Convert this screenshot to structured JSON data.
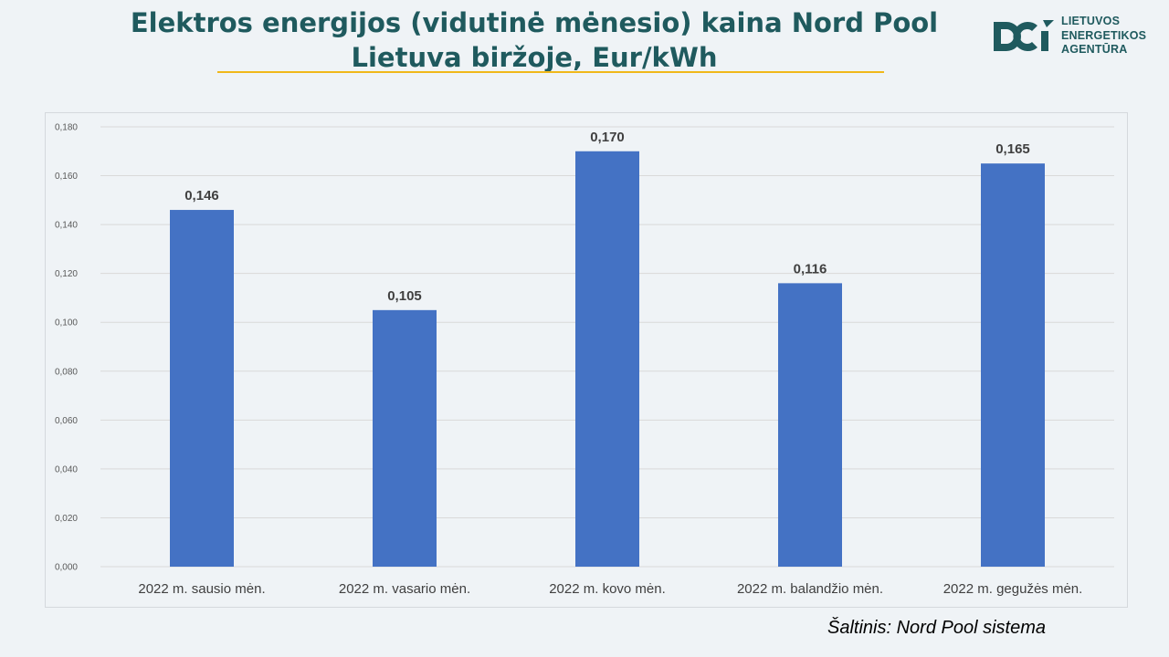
{
  "title": "Elektros energijos (vidutinė mėnesio) kaina Nord Pool Lietuva biržoje, Eur/kWh",
  "logo": {
    "lines": [
      "LIETUVOS",
      "ENERGETIKOS",
      "AGENTŪRA"
    ],
    "icon": "agency-logo-icon",
    "color": "#1f5a5e"
  },
  "source": "Šaltinis: Nord Pool sistema",
  "colors": {
    "bar": "#4472c4",
    "title": "#1f5a5e",
    "underline": "#f0b81a",
    "grid": "#d9d9d9",
    "label": "#404040"
  },
  "chart_data": {
    "type": "bar",
    "categories": [
      "2022 m. sausio mėn.",
      "2022 m. vasario mėn.",
      "2022 m. kovo mėn.",
      "2022 m. balandžio mėn.",
      "2022 m. gegužės mėn."
    ],
    "values": [
      0.146,
      0.105,
      0.17,
      0.116,
      0.165
    ],
    "data_labels": [
      "0,146",
      "0,105",
      "0,170",
      "0,116",
      "0,165"
    ],
    "ylim": [
      0,
      0.18
    ],
    "yticks": [
      0,
      0.02,
      0.04,
      0.06,
      0.08,
      0.1,
      0.12,
      0.14,
      0.16,
      0.18
    ],
    "ytick_labels": [
      "0,000",
      "0,020",
      "0,040",
      "0,060",
      "0,080",
      "0,100",
      "0,120",
      "0,140",
      "0,160",
      "0,180"
    ],
    "grid": true,
    "legend": "none",
    "xlabel": "",
    "ylabel": ""
  }
}
